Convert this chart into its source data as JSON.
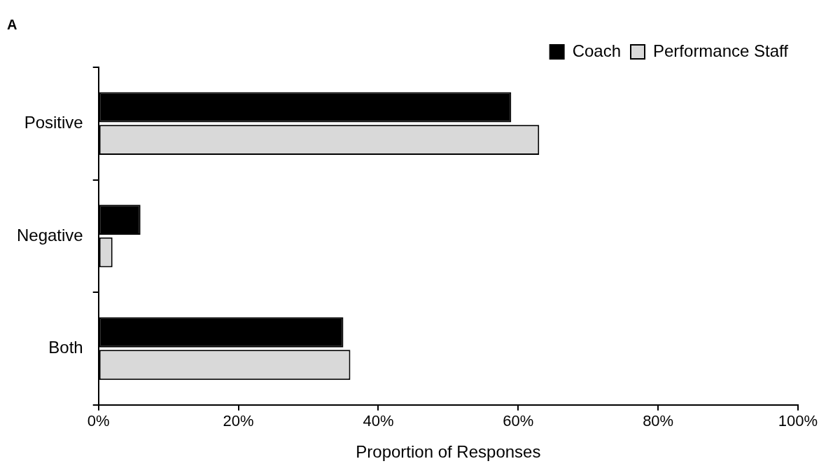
{
  "chart_data": {
    "type": "bar",
    "orientation": "horizontal",
    "title": "A",
    "xlabel": "Proportion of Responses",
    "categories": [
      "Positive",
      "Negative",
      "Both"
    ],
    "series": [
      {
        "name": "Coach",
        "color": "#000000",
        "values": [
          59,
          6,
          35
        ]
      },
      {
        "name": "Performance Staff",
        "color": "#d9d9d9",
        "values": [
          63,
          2,
          36
        ]
      }
    ],
    "xlim": [
      0,
      100
    ],
    "xticks": [
      {
        "value": 0,
        "label": "0%"
      },
      {
        "value": 20,
        "label": "20%"
      },
      {
        "value": 40,
        "label": "40%"
      },
      {
        "value": 60,
        "label": "60%"
      },
      {
        "value": 80,
        "label": "80%"
      },
      {
        "value": 100,
        "label": "100%"
      }
    ],
    "grid": false,
    "legend": "top right"
  }
}
